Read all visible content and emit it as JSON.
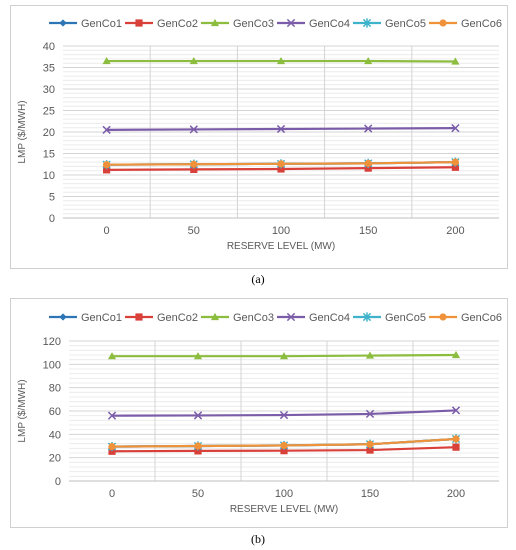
{
  "chart_data": [
    {
      "type": "line",
      "caption": "(a)",
      "xlabel": "RESERVE LEVEL (MW)",
      "ylabel": "LMP ($/MWH)",
      "categories": [
        "0",
        "50",
        "100",
        "150",
        "200"
      ],
      "ylim": [
        0,
        40
      ],
      "yticks": [
        0,
        5,
        10,
        15,
        20,
        25,
        30,
        35,
        40
      ],
      "grid": true,
      "legend_position": "top",
      "series": [
        {
          "name": "GenCo1",
          "color": "#2e75b6",
          "marker": "diamond",
          "values": [
            12.4,
            12.5,
            12.6,
            12.7,
            13.0
          ]
        },
        {
          "name": "GenCo2",
          "color": "#d9403a",
          "marker": "square",
          "values": [
            11.2,
            11.3,
            11.4,
            11.6,
            11.8
          ]
        },
        {
          "name": "GenCo3",
          "color": "#8cbd3f",
          "marker": "triangle",
          "values": [
            36.5,
            36.5,
            36.5,
            36.5,
            36.4
          ]
        },
        {
          "name": "GenCo4",
          "color": "#7a5ca8",
          "marker": "x",
          "values": [
            20.5,
            20.6,
            20.7,
            20.8,
            20.9
          ]
        },
        {
          "name": "GenCo5",
          "color": "#3fb3cc",
          "marker": "star",
          "values": [
            12.4,
            12.5,
            12.6,
            12.7,
            13.0
          ]
        },
        {
          "name": "GenCo6",
          "color": "#f0923a",
          "marker": "circle",
          "values": [
            12.4,
            12.5,
            12.6,
            12.7,
            13.0
          ]
        }
      ]
    },
    {
      "type": "line",
      "caption": "(b)",
      "xlabel": "RESERVE LEVEL (MW)",
      "ylabel": "LMP ($/MWH)",
      "categories": [
        "0",
        "50",
        "100",
        "150",
        "200"
      ],
      "ylim": [
        0,
        120
      ],
      "yticks": [
        0,
        20,
        40,
        60,
        80,
        100,
        120
      ],
      "grid": true,
      "legend_position": "top",
      "series": [
        {
          "name": "GenCo1",
          "color": "#2e75b6",
          "marker": "diamond",
          "values": [
            29.5,
            30,
            30.5,
            31.5,
            36
          ]
        },
        {
          "name": "GenCo2",
          "color": "#d9403a",
          "marker": "square",
          "values": [
            25.5,
            25.8,
            26,
            26.5,
            29
          ]
        },
        {
          "name": "GenCo3",
          "color": "#8cbd3f",
          "marker": "triangle",
          "values": [
            107,
            107,
            107,
            107.5,
            108
          ]
        },
        {
          "name": "GenCo4",
          "color": "#7a5ca8",
          "marker": "x",
          "values": [
            56,
            56.2,
            56.5,
            57.5,
            60.5
          ]
        },
        {
          "name": "GenCo5",
          "color": "#3fb3cc",
          "marker": "star",
          "values": [
            29.5,
            30,
            30.5,
            31.5,
            36
          ]
        },
        {
          "name": "GenCo6",
          "color": "#f0923a",
          "marker": "circle",
          "values": [
            29.5,
            30,
            30.5,
            31.5,
            36
          ]
        }
      ]
    }
  ]
}
